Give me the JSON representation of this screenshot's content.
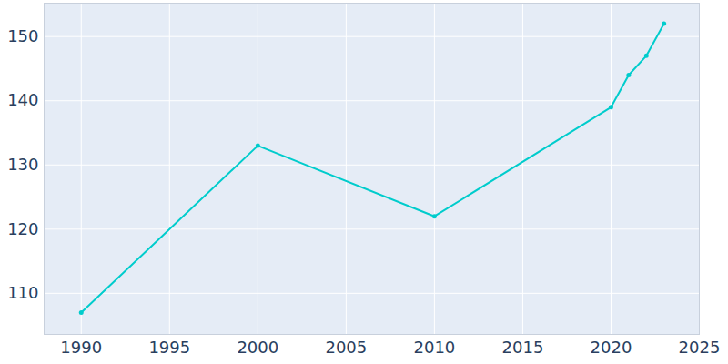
{
  "chart_data": {
    "type": "line",
    "x": [
      1990,
      2000,
      2010,
      2020,
      2021,
      2022,
      2023
    ],
    "values": [
      107,
      133,
      122,
      139,
      144,
      147,
      152
    ],
    "color": "#00cccc",
    "marker": "circle",
    "xlim": [
      1987.9,
      2025
    ],
    "xticks": [
      1990,
      1995,
      2000,
      2005,
      2010,
      2015,
      2020,
      2025
    ],
    "ylim": [
      103.6,
      155.2
    ],
    "yticks": [
      110,
      120,
      130,
      140,
      150
    ],
    "grid": true
  }
}
